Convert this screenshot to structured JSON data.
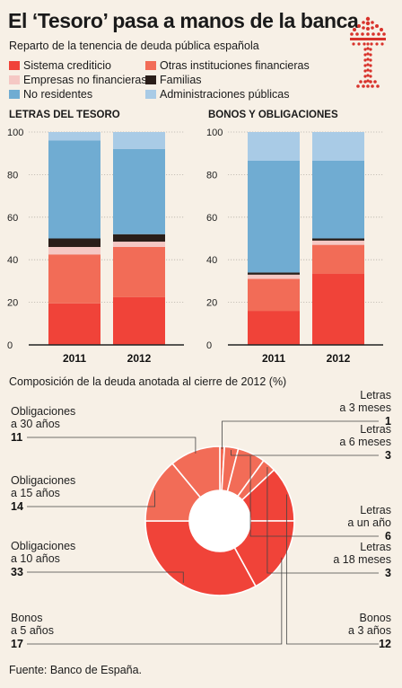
{
  "title": "El ‘Tesoro’ pasa a manos de la banca",
  "subtitle": "Reparto de la tenencia de deuda pública española",
  "source": "Fuente: Banco de España.",
  "donut_title": "Composición de la deuda anotada al cierre de 2012 (%)",
  "logo": "tesoro-crown-logo",
  "legend": [
    {
      "label": "Sistema crediticio",
      "color": "#f04339"
    },
    {
      "label": "Otras instituciones financieras",
      "color": "#f26c57"
    },
    {
      "label": "Empresas no financieras",
      "color": "#f5c8c4"
    },
    {
      "label": "Familias",
      "color": "#2a1e19"
    },
    {
      "label": "No residentes",
      "color": "#70acd2"
    },
    {
      "label": "Administraciones públicas",
      "color": "#a9cbe6"
    }
  ],
  "chart_data": [
    {
      "type": "bar",
      "stacked": true,
      "title": "LETRAS DEL TESORO",
      "categories": [
        "2011",
        "2012"
      ],
      "ylim": [
        0,
        100
      ],
      "yticks": [
        "0",
        "20",
        "40",
        "60",
        "80",
        "100"
      ],
      "grid": true,
      "series": [
        {
          "name": "Sistema crediticio",
          "values": [
            19.5,
            22.5
          ]
        },
        {
          "name": "Otras instituciones financieras",
          "values": [
            23,
            23.5
          ]
        },
        {
          "name": "Empresas no financieras",
          "values": [
            3.5,
            2.5
          ]
        },
        {
          "name": "Familias",
          "values": [
            4,
            3.5
          ]
        },
        {
          "name": "No residentes",
          "values": [
            46,
            40
          ]
        },
        {
          "name": "Administraciones públicas",
          "values": [
            4,
            8
          ]
        }
      ]
    },
    {
      "type": "bar",
      "stacked": true,
      "title": "BONOS Y OBLIGACIONES",
      "categories": [
        "2011",
        "2012"
      ],
      "ylim": [
        0,
        100
      ],
      "yticks": [
        "0",
        "20",
        "40",
        "60",
        "80",
        "100"
      ],
      "grid": true,
      "series": [
        {
          "name": "Sistema crediticio",
          "values": [
            16,
            33.5
          ]
        },
        {
          "name": "Otras instituciones financieras",
          "values": [
            15,
            13.5
          ]
        },
        {
          "name": "Empresas no financieras",
          "values": [
            2,
            2
          ]
        },
        {
          "name": "Familias",
          "values": [
            1,
            1
          ]
        },
        {
          "name": "No residentes",
          "values": [
            52.5,
            36.5
          ]
        },
        {
          "name": "Administraciones públicas",
          "values": [
            13.5,
            13.5
          ]
        }
      ]
    },
    {
      "type": "pie",
      "donut": true,
      "title": "Composición de la deuda anotada al cierre de 2012 (%)",
      "slices": [
        {
          "lines": [
            "Letras",
            "a 3 meses"
          ],
          "value": 1
        },
        {
          "lines": [
            "Letras",
            "a 6 meses"
          ],
          "value": 3
        },
        {
          "lines": [
            "Letras",
            "a un año"
          ],
          "value": 6
        },
        {
          "lines": [
            "Letras",
            "a 18 meses"
          ],
          "value": 3
        },
        {
          "lines": [
            "Bonos",
            "a 3 años"
          ],
          "value": 12
        },
        {
          "lines": [
            "Bonos",
            "a 5 años"
          ],
          "value": 17
        },
        {
          "lines": [
            "Obligaciones",
            "a 10 años"
          ],
          "value": 33
        },
        {
          "lines": [
            "Obligaciones",
            "a 15 años"
          ],
          "value": 14
        },
        {
          "lines": [
            "Obligaciones",
            "a 30 años"
          ],
          "value": 11
        }
      ]
    }
  ]
}
